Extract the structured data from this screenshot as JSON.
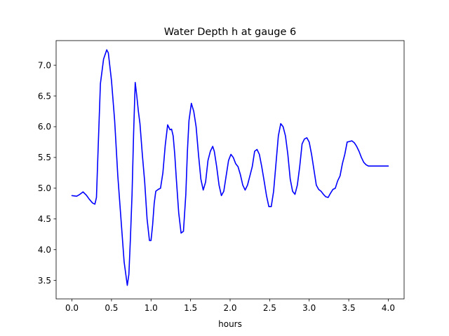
{
  "chart_data": {
    "type": "line",
    "title": "Water Depth h at gauge 6",
    "xlabel": "hours",
    "ylabel": "",
    "xlim": [
      -0.2,
      4.2
    ],
    "ylim": [
      3.2,
      7.4
    ],
    "xticks": [
      0.0,
      0.5,
      1.0,
      1.5,
      2.0,
      2.5,
      3.0,
      3.5,
      4.0
    ],
    "xtick_labels": [
      "0.0",
      "0.5",
      "1.0",
      "1.5",
      "2.0",
      "2.5",
      "3.0",
      "3.5",
      "4.0"
    ],
    "yticks": [
      3.5,
      4.0,
      4.5,
      5.0,
      5.5,
      6.0,
      6.5,
      7.0
    ],
    "ytick_labels": [
      "3.5",
      "4.0",
      "4.5",
      "5.0",
      "5.5",
      "6.0",
      "6.5",
      "7.0"
    ],
    "grid": false,
    "legend": null,
    "series": [
      {
        "color": "#0000ff",
        "x": [
          0.0,
          0.06,
          0.1,
          0.14,
          0.18,
          0.22,
          0.26,
          0.29,
          0.31,
          0.33,
          0.36,
          0.4,
          0.44,
          0.46,
          0.5,
          0.54,
          0.58,
          0.62,
          0.66,
          0.7,
          0.72,
          0.74,
          0.76,
          0.78,
          0.8,
          0.82,
          0.84,
          0.86,
          0.89,
          0.92,
          0.95,
          0.98,
          1.0,
          1.02,
          1.04,
          1.06,
          1.09,
          1.12,
          1.15,
          1.18,
          1.21,
          1.24,
          1.26,
          1.28,
          1.3,
          1.32,
          1.35,
          1.38,
          1.41,
          1.44,
          1.46,
          1.48,
          1.51,
          1.54,
          1.57,
          1.6,
          1.63,
          1.66,
          1.69,
          1.72,
          1.75,
          1.78,
          1.8,
          1.83,
          1.86,
          1.89,
          1.92,
          1.95,
          1.98,
          2.01,
          2.04,
          2.07,
          2.1,
          2.13,
          2.16,
          2.19,
          2.22,
          2.25,
          2.28,
          2.31,
          2.34,
          2.37,
          2.4,
          2.43,
          2.46,
          2.49,
          2.52,
          2.55,
          2.58,
          2.61,
          2.64,
          2.67,
          2.7,
          2.73,
          2.76,
          2.79,
          2.82,
          2.85,
          2.88,
          2.91,
          2.94,
          2.97,
          3.0,
          3.03,
          3.06,
          3.09,
          3.12,
          3.15,
          3.18,
          3.21,
          3.24,
          3.27,
          3.3,
          3.33,
          3.36,
          3.39,
          3.42,
          3.45,
          3.48,
          3.51,
          3.54,
          3.57,
          3.6,
          3.63,
          3.66,
          3.69,
          3.72,
          3.75,
          3.78,
          3.81,
          3.84,
          3.87,
          3.9,
          3.93,
          3.96,
          4.0
        ],
        "y": [
          4.88,
          4.87,
          4.9,
          4.94,
          4.89,
          4.82,
          4.76,
          4.74,
          4.85,
          5.6,
          6.7,
          7.1,
          7.25,
          7.2,
          6.75,
          6.1,
          5.2,
          4.5,
          3.8,
          3.42,
          3.6,
          4.2,
          4.9,
          5.9,
          6.72,
          6.5,
          6.25,
          6.05,
          5.55,
          5.1,
          4.5,
          4.15,
          4.15,
          4.4,
          4.75,
          4.95,
          4.98,
          5.0,
          5.25,
          5.7,
          6.03,
          5.95,
          5.96,
          5.85,
          5.55,
          5.15,
          4.6,
          4.27,
          4.3,
          4.9,
          5.6,
          6.1,
          6.38,
          6.25,
          6.0,
          5.55,
          5.15,
          4.97,
          5.1,
          5.45,
          5.6,
          5.68,
          5.6,
          5.35,
          5.05,
          4.88,
          4.95,
          5.2,
          5.45,
          5.55,
          5.5,
          5.4,
          5.35,
          5.22,
          5.05,
          4.97,
          5.05,
          5.2,
          5.35,
          5.6,
          5.63,
          5.55,
          5.35,
          5.12,
          4.88,
          4.7,
          4.7,
          4.95,
          5.4,
          5.85,
          6.05,
          6.0,
          5.85,
          5.55,
          5.15,
          4.95,
          4.9,
          5.05,
          5.35,
          5.72,
          5.8,
          5.82,
          5.75,
          5.55,
          5.3,
          5.05,
          4.98,
          4.95,
          4.9,
          4.86,
          4.85,
          4.92,
          4.98,
          5.0,
          5.12,
          5.2,
          5.4,
          5.55,
          5.75,
          5.76,
          5.77,
          5.74,
          5.68,
          5.6,
          5.5,
          5.42,
          5.38,
          5.36,
          5.36,
          5.36,
          5.36,
          5.36,
          5.36,
          5.36,
          5.36,
          5.36
        ]
      }
    ]
  }
}
